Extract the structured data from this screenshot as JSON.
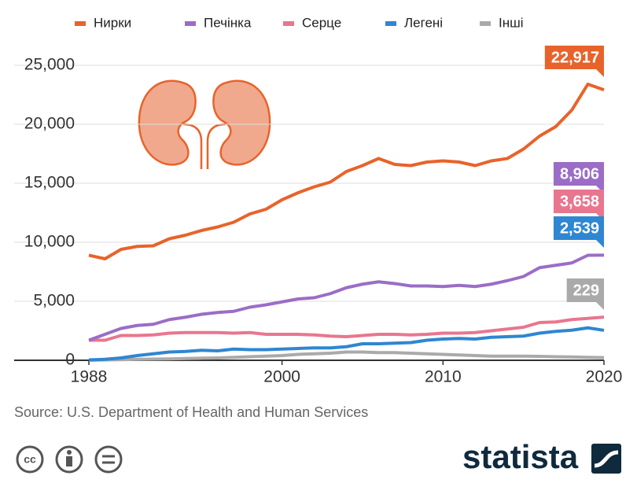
{
  "chart_data": {
    "type": "line",
    "x": [
      1988,
      1989,
      1990,
      1991,
      1992,
      1993,
      1994,
      1995,
      1996,
      1997,
      1998,
      1999,
      2000,
      2001,
      2002,
      2003,
      2004,
      2005,
      2006,
      2007,
      2008,
      2009,
      2010,
      2011,
      2012,
      2013,
      2014,
      2015,
      2016,
      2017,
      2018,
      2019,
      2020
    ],
    "xlim": [
      1988,
      2020
    ],
    "xticks": [
      1988,
      2000,
      2010,
      2020
    ],
    "ylim": [
      0,
      25000
    ],
    "yticks": [
      0,
      {
        "value": 5000,
        "label": "5,000"
      },
      {
        "value": 10000,
        "label": "10,000"
      },
      {
        "value": 15000,
        "label": "15,000"
      },
      {
        "value": 20000,
        "label": "20,000"
      },
      {
        "value": 25000,
        "label": "25,000"
      }
    ],
    "grid": true,
    "legend": "top",
    "series": [
      {
        "name": "Нирки",
        "color": "#e8632b",
        "end_label": "22,917",
        "values": [
          8900,
          8600,
          9400,
          9650,
          9700,
          10300,
          10600,
          11000,
          11300,
          11700,
          12400,
          12800,
          13600,
          14200,
          14700,
          15100,
          16000,
          16500,
          17100,
          16600,
          16500,
          16800,
          16900,
          16800,
          16500,
          16900,
          17100,
          17900,
          19000,
          19800,
          21200,
          23400,
          22917
        ]
      },
      {
        "name": "Печінка",
        "color": "#9b6dc6",
        "end_label": "8,906",
        "values": [
          1700,
          2200,
          2700,
          2950,
          3050,
          3450,
          3650,
          3900,
          4050,
          4150,
          4500,
          4700,
          4950,
          5200,
          5300,
          5650,
          6150,
          6450,
          6650,
          6500,
          6300,
          6300,
          6250,
          6350,
          6250,
          6450,
          6750,
          7100,
          7850,
          8050,
          8250,
          8900,
          8906
        ]
      },
      {
        "name": "Серце",
        "color": "#e8768f",
        "end_label": "3,658",
        "values": [
          1700,
          1700,
          2100,
          2100,
          2150,
          2300,
          2350,
          2350,
          2350,
          2300,
          2350,
          2200,
          2200,
          2200,
          2150,
          2050,
          2000,
          2100,
          2200,
          2200,
          2150,
          2200,
          2300,
          2300,
          2350,
          2500,
          2650,
          2800,
          3200,
          3250,
          3450,
          3550,
          3658
        ]
      },
      {
        "name": "Легені",
        "color": "#2f86d1",
        "end_label": "2,539",
        "values": [
          30,
          80,
          200,
          400,
          550,
          700,
          750,
          850,
          800,
          950,
          900,
          900,
          950,
          1000,
          1050,
          1050,
          1150,
          1400,
          1400,
          1450,
          1500,
          1700,
          1800,
          1850,
          1800,
          1950,
          2000,
          2050,
          2300,
          2450,
          2550,
          2750,
          2539
        ]
      },
      {
        "name": "Інші",
        "color": "#aaaaaa",
        "end_label": "229",
        "values": [
          0,
          30,
          50,
          80,
          100,
          120,
          150,
          180,
          200,
          250,
          300,
          350,
          400,
          500,
          550,
          600,
          700,
          700,
          650,
          650,
          600,
          550,
          500,
          450,
          400,
          350,
          350,
          350,
          330,
          300,
          280,
          250,
          229
        ]
      }
    ],
    "source": "Source: U.S. Department of Health and Human Services",
    "brand": "statista"
  }
}
